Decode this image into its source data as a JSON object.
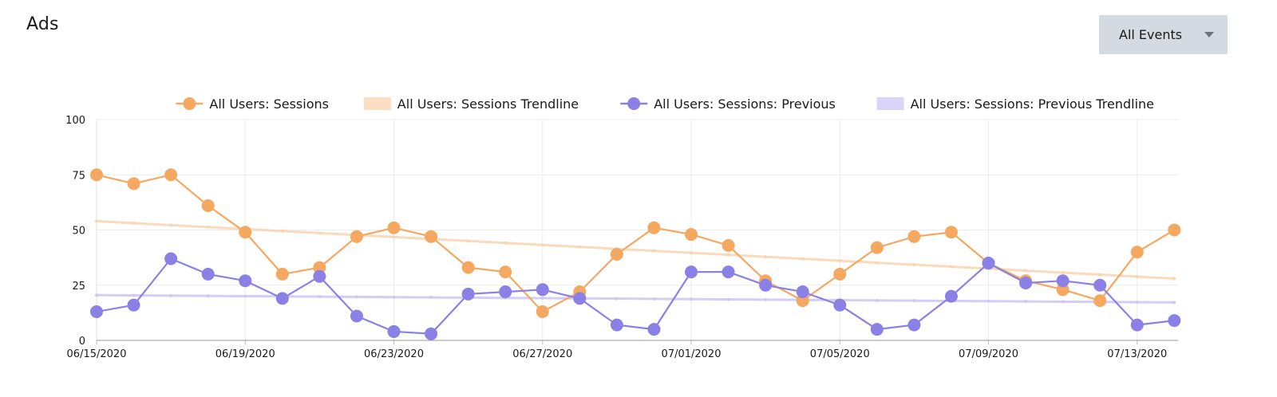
{
  "header": {
    "title": "Ads"
  },
  "event_filter": {
    "selected": "All Events"
  },
  "chart_data": {
    "type": "line",
    "legend_position": "top-right",
    "grid": true,
    "x": [
      "06/15/2020",
      "06/16/2020",
      "06/17/2020",
      "06/18/2020",
      "06/19/2020",
      "06/20/2020",
      "06/21/2020",
      "06/22/2020",
      "06/23/2020",
      "06/24/2020",
      "06/25/2020",
      "06/26/2020",
      "06/27/2020",
      "06/28/2020",
      "06/29/2020",
      "06/30/2020",
      "07/01/2020",
      "07/02/2020",
      "07/03/2020",
      "07/04/2020",
      "07/05/2020",
      "07/06/2020",
      "07/07/2020",
      "07/08/2020",
      "07/09/2020",
      "07/10/2020",
      "07/11/2020",
      "07/12/2020",
      "07/13/2020",
      "07/14/2020"
    ],
    "x_tick_labels": [
      "06/15/2020",
      "06/19/2020",
      "06/23/2020",
      "06/27/2020",
      "07/01/2020",
      "07/05/2020",
      "07/09/2020",
      "07/13/2020"
    ],
    "x_tick_every": 4,
    "y_ticks": [
      0,
      25,
      50,
      75,
      100
    ],
    "ylim": [
      0,
      100
    ],
    "series": [
      {
        "name": "All Users: Sessions",
        "color": "#f4a860",
        "values": [
          75,
          71,
          75,
          61,
          49,
          30,
          33,
          47,
          51,
          47,
          33,
          31,
          13,
          22,
          39,
          51,
          48,
          43,
          27,
          18,
          30,
          42,
          47,
          49,
          35,
          27,
          23,
          18,
          40,
          50
        ]
      },
      {
        "name": "All Users: Sessions: Previous",
        "color": "#8b80e6",
        "values": [
          13,
          16,
          37,
          30,
          27,
          19,
          29,
          11,
          4,
          3,
          21,
          22,
          23,
          19,
          7,
          5,
          31,
          31,
          25,
          22,
          16,
          5,
          7,
          20,
          35,
          26,
          27,
          25,
          7,
          9
        ]
      }
    ],
    "trendlines": [
      {
        "name": "All Users: Sessions Trendline",
        "color": "#fbd3b0",
        "start": 54,
        "end": 28
      },
      {
        "name": "All Users: Sessions: Previous Trendline",
        "color": "#cdc6f5",
        "start": 20.5,
        "end": 17.2
      }
    ]
  }
}
